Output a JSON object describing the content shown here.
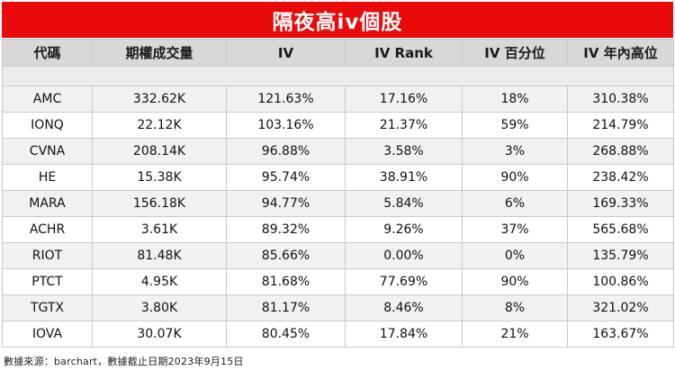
{
  "title": "隔夜高iv個股",
  "table": {
    "headers": [
      "代碼",
      "期權成交量",
      "IV",
      "IV Rank",
      "IV 百分位",
      "IV 年內高位"
    ],
    "rows": [
      [
        "AMC",
        "332.62K",
        "121.63%",
        "17.16%",
        "18%",
        "310.38%"
      ],
      [
        "IONQ",
        "22.12K",
        "103.16%",
        "21.37%",
        "59%",
        "214.79%"
      ],
      [
        "CVNA",
        "208.14K",
        "96.88%",
        "3.58%",
        "3%",
        "268.88%"
      ],
      [
        "HE",
        "15.38K",
        "95.74%",
        "38.91%",
        "90%",
        "238.42%"
      ],
      [
        "MARA",
        "156.18K",
        "94.77%",
        "5.84%",
        "6%",
        "169.33%"
      ],
      [
        "ACHR",
        "3.61K",
        "89.32%",
        "9.26%",
        "37%",
        "565.68%"
      ],
      [
        "RIOT",
        "81.48K",
        "85.66%",
        "0.00%",
        "0%",
        "135.79%"
      ],
      [
        "PTCT",
        "4.95K",
        "81.68%",
        "77.69%",
        "90%",
        "100.86%"
      ],
      [
        "TGTX",
        "3.80K",
        "81.17%",
        "8.46%",
        "8%",
        "321.02%"
      ],
      [
        "IOVA",
        "30.07K",
        "80.45%",
        "17.84%",
        "21%",
        "163.67%"
      ]
    ]
  },
  "footnote": "數據來源：barchart，數據截止日期2023年9月15日",
  "colors": {
    "title_bar": "#ea0a0a",
    "header_bg": "#d8d8d8",
    "row_alt_bg": "#f1f1f1"
  }
}
